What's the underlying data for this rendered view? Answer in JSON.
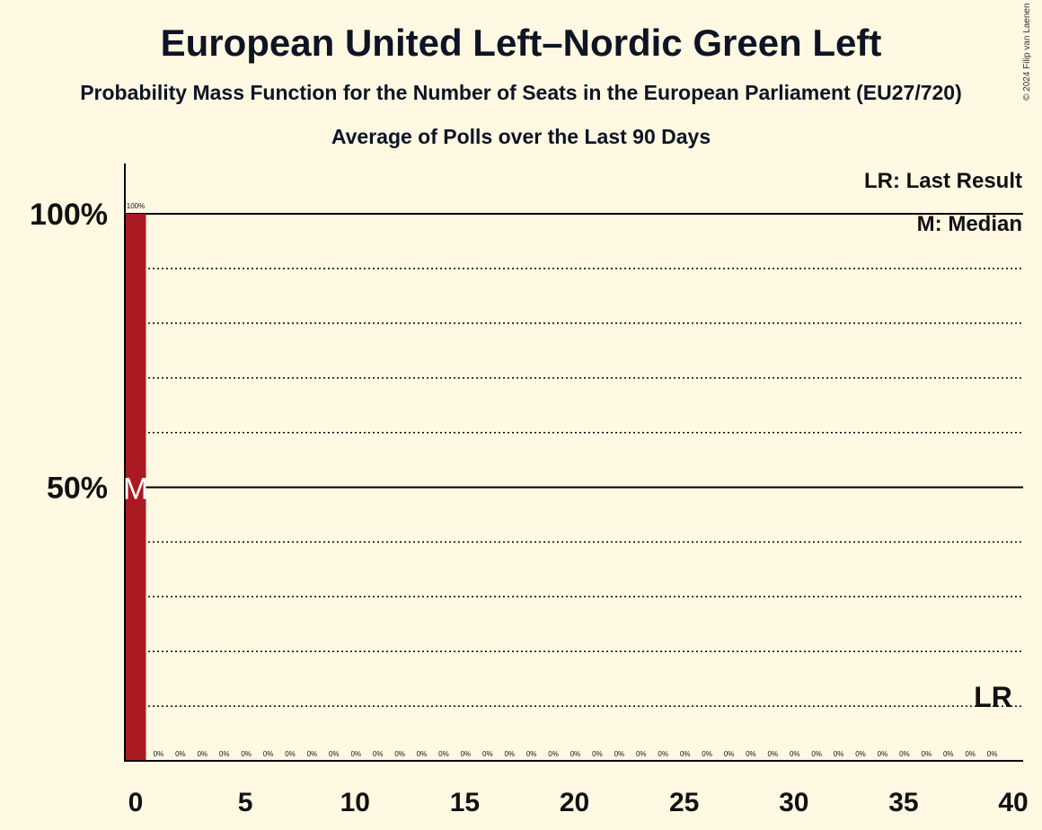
{
  "title": "European United Left–Nordic Green Left",
  "subtitle": "Probability Mass Function for the Number of Seats in the European Parliament (EU27/720)",
  "subtitle2": "Average of Polls over the Last 90 Days",
  "copyright": "© 2024 Filip van Laenen",
  "legend": {
    "last_result": "LR: Last Result",
    "median": "M: Median"
  },
  "colors": {
    "background": "#fff8e2",
    "bar": "#aa1a22",
    "axis": "#000000"
  },
  "chart_data": {
    "type": "bar",
    "title": "European United Left–Nordic Green Left",
    "xlabel": "",
    "ylabel": "",
    "xlim": [
      0,
      40
    ],
    "ylim": [
      0,
      100
    ],
    "x_ticks": [
      0,
      5,
      10,
      15,
      20,
      25,
      30,
      35,
      40
    ],
    "x_tick_labels": [
      "0",
      "5",
      "10",
      "15",
      "20",
      "25",
      "30",
      "35",
      "40"
    ],
    "y_ticks": [
      50,
      100
    ],
    "y_tick_labels": [
      "50%",
      "100%"
    ],
    "grid_dotted": [
      10,
      20,
      30,
      40,
      60,
      70,
      80,
      90
    ],
    "grid_solid": [
      50,
      100
    ],
    "seats": [
      0,
      1,
      2,
      3,
      4,
      5,
      6,
      7,
      8,
      9,
      10,
      11,
      12,
      13,
      14,
      15,
      16,
      17,
      18,
      19,
      20,
      21,
      22,
      23,
      24,
      25,
      26,
      27,
      28,
      29,
      30,
      31,
      32,
      33,
      34,
      35,
      36,
      37,
      38,
      39
    ],
    "probabilities": [
      100,
      0,
      0,
      0,
      0,
      0,
      0,
      0,
      0,
      0,
      0,
      0,
      0,
      0,
      0,
      0,
      0,
      0,
      0,
      0,
      0,
      0,
      0,
      0,
      0,
      0,
      0,
      0,
      0,
      0,
      0,
      0,
      0,
      0,
      0,
      0,
      0,
      0,
      0,
      0
    ],
    "value_labels": [
      "100%",
      "0%",
      "0%",
      "0%",
      "0%",
      "0%",
      "0%",
      "0%",
      "0%",
      "0%",
      "0%",
      "0%",
      "0%",
      "0%",
      "0%",
      "0%",
      "0%",
      "0%",
      "0%",
      "0%",
      "0%",
      "0%",
      "0%",
      "0%",
      "0%",
      "0%",
      "0%",
      "0%",
      "0%",
      "0%",
      "0%",
      "0%",
      "0%",
      "0%",
      "0%",
      "0%",
      "0%",
      "0%",
      "0%",
      "0%"
    ],
    "median_seat": 0,
    "median_marker": "M",
    "last_result_seat": 39,
    "last_result_marker": "LR"
  }
}
